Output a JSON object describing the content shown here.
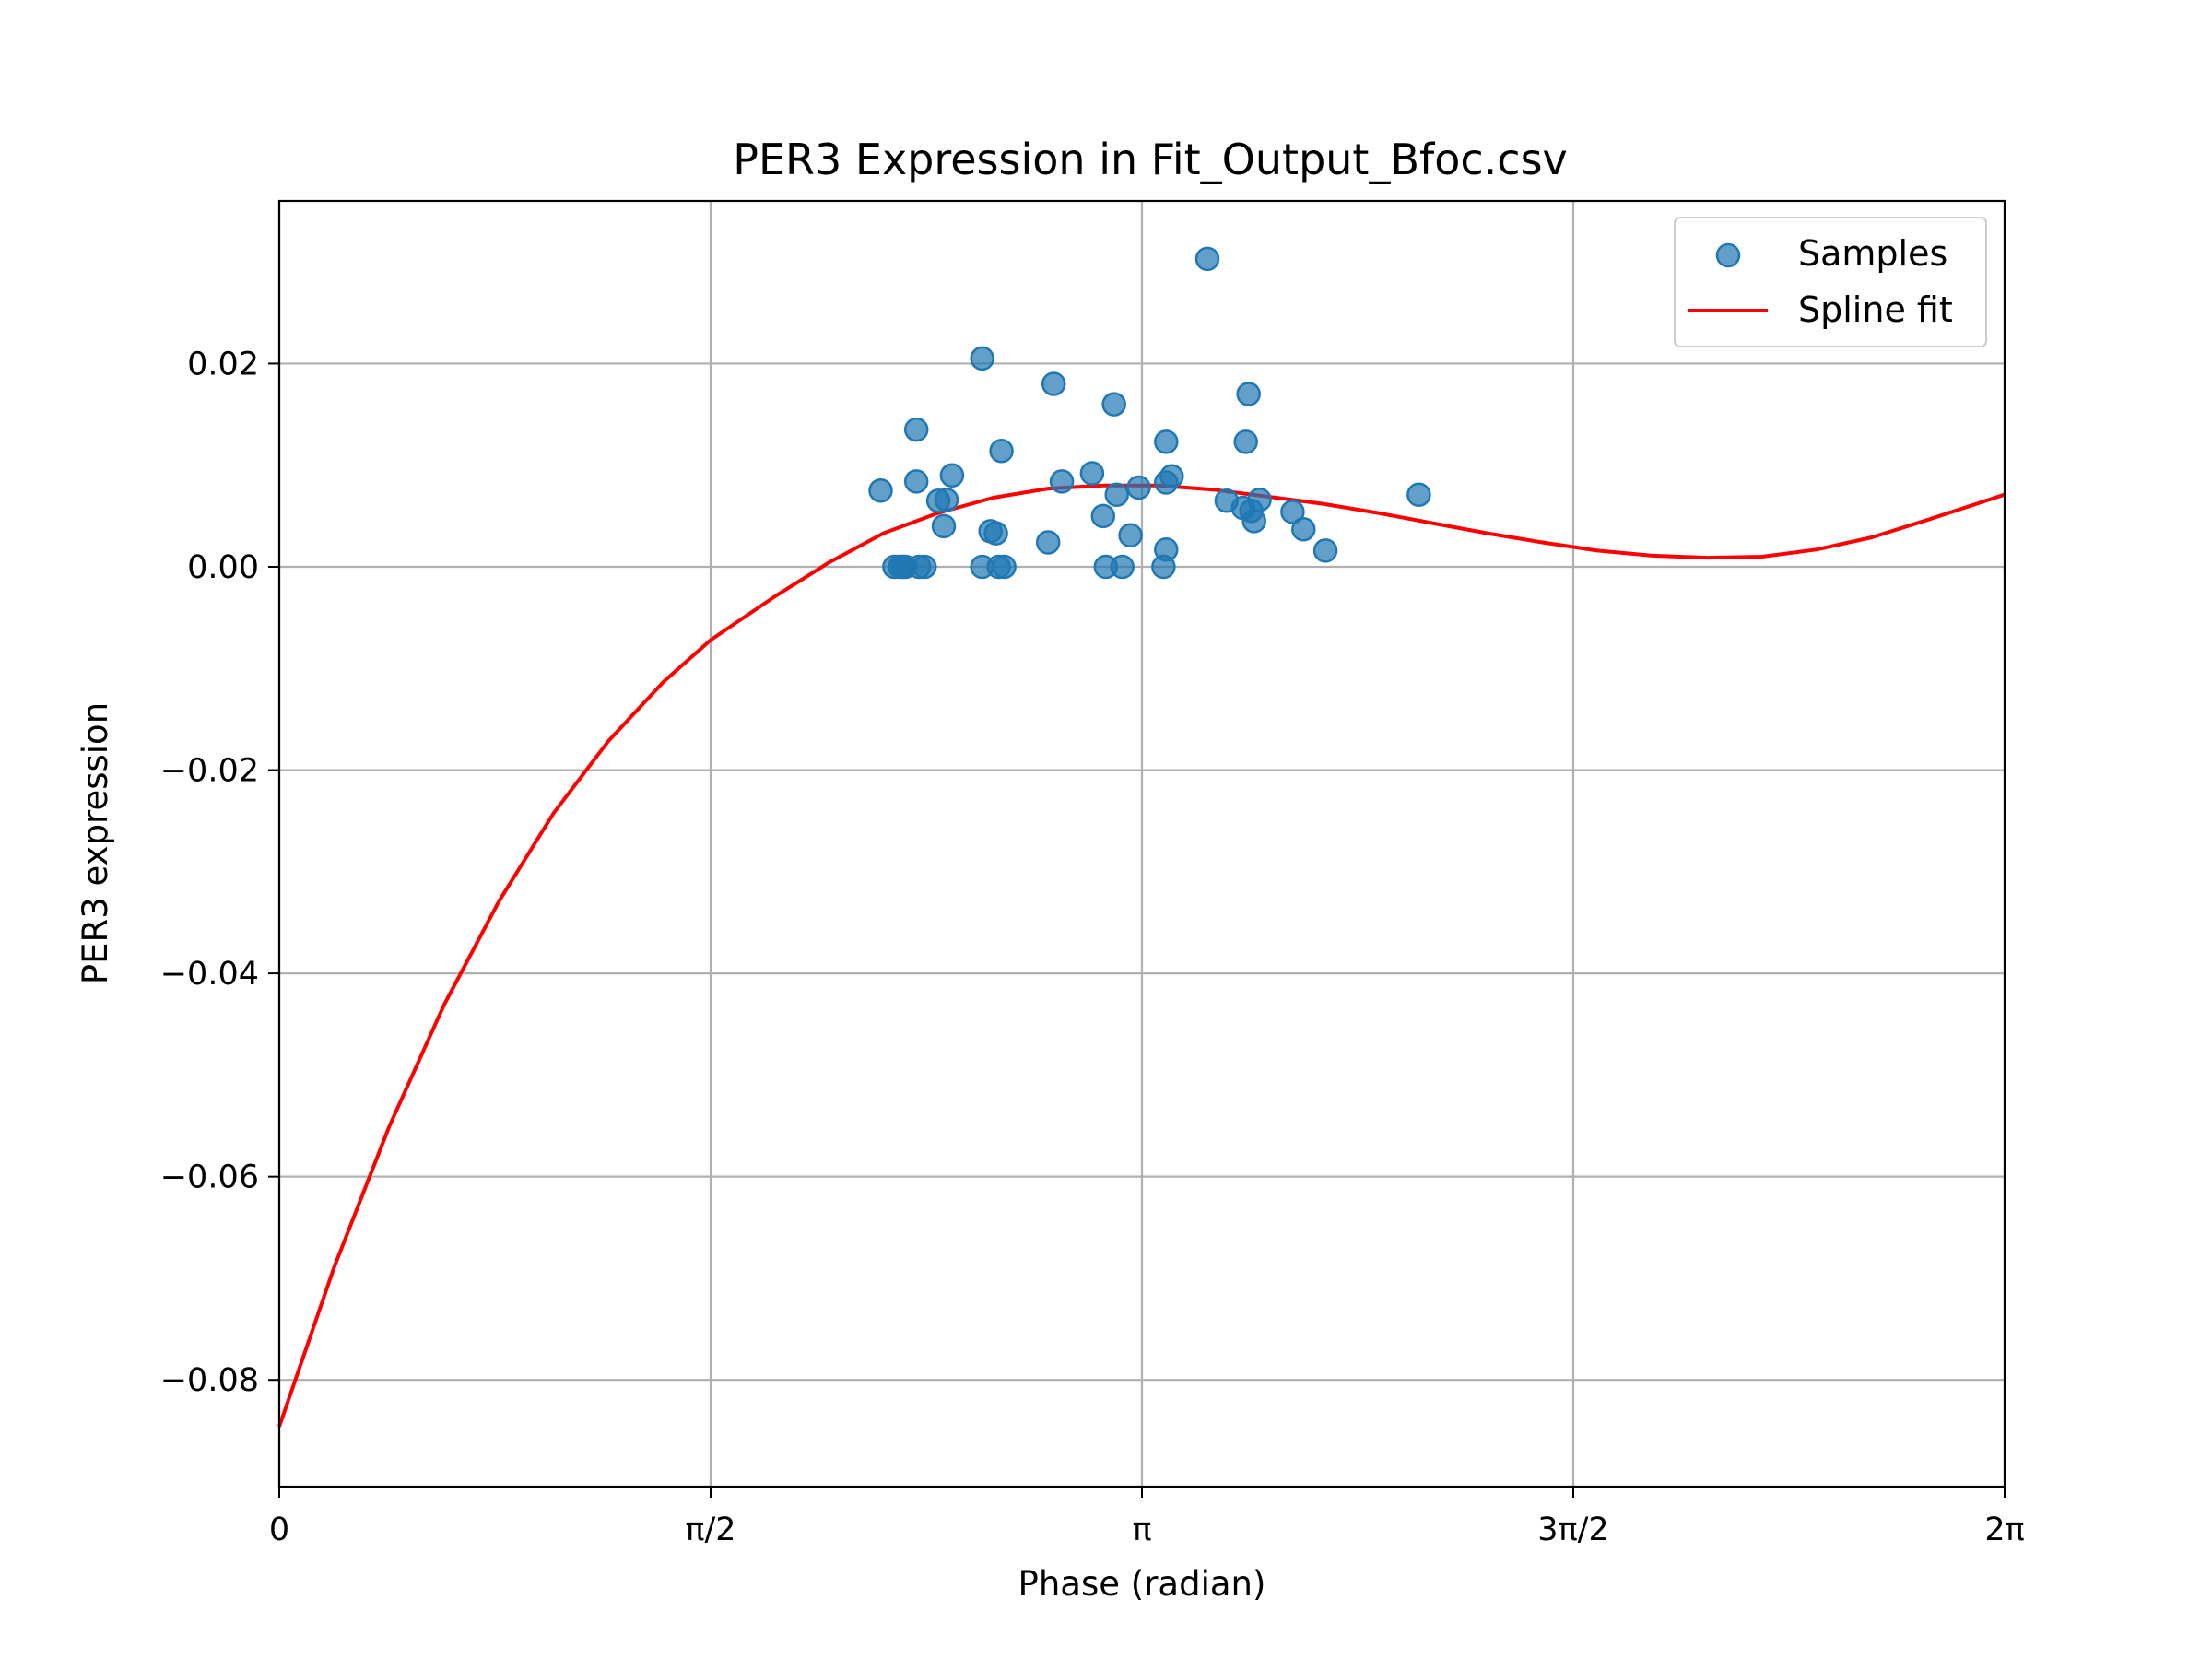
{
  "chart_data": {
    "type": "scatter",
    "title": "PER3 Expression in Fit_Output_Bfoc.csv",
    "xlabel": "Phase (radian)",
    "ylabel": "PER3 expression",
    "xlim": [
      0,
      6.283185
    ],
    "ylim": [
      -0.0905,
      0.036
    ],
    "grid": true,
    "legend_position": "top-right",
    "x_ticks": [
      {
        "value": 0,
        "label": "0"
      },
      {
        "value": 1.570796,
        "label": "π/2"
      },
      {
        "value": 3.141593,
        "label": "π"
      },
      {
        "value": 4.712389,
        "label": "3π/2"
      },
      {
        "value": 6.283185,
        "label": "2π"
      }
    ],
    "y_ticks": [
      {
        "value": 0.02,
        "label": "0.02"
      },
      {
        "value": 0.0,
        "label": "0.00"
      },
      {
        "value": -0.02,
        "label": "−0.02"
      },
      {
        "value": -0.04,
        "label": "−0.04"
      },
      {
        "value": -0.06,
        "label": "−0.06"
      },
      {
        "value": -0.08,
        "label": "−0.08"
      }
    ],
    "series": [
      {
        "name": "Samples",
        "kind": "scatter",
        "color": "#1f77b4",
        "points": [
          [
            2.19,
            0.0075
          ],
          [
            2.24,
            0.0
          ],
          [
            2.26,
            0.0
          ],
          [
            2.27,
            0.0
          ],
          [
            2.28,
            0.0
          ],
          [
            2.32,
            0.0135
          ],
          [
            2.32,
            0.0084
          ],
          [
            2.33,
            0.0
          ],
          [
            2.35,
            0.0
          ],
          [
            2.4,
            0.0065
          ],
          [
            2.43,
            0.0066
          ],
          [
            2.42,
            0.004
          ],
          [
            2.45,
            0.009
          ],
          [
            2.56,
            0.0205
          ],
          [
            2.56,
            0.0
          ],
          [
            2.59,
            0.0035
          ],
          [
            2.61,
            0.0033
          ],
          [
            2.62,
            0.0
          ],
          [
            2.64,
            0.0
          ],
          [
            2.63,
            0.0114
          ],
          [
            2.8,
            0.0024
          ],
          [
            2.82,
            0.018
          ],
          [
            2.85,
            0.0084
          ],
          [
            2.96,
            0.0092
          ],
          [
            3.0,
            0.005
          ],
          [
            3.01,
            0.0
          ],
          [
            3.04,
            0.016
          ],
          [
            3.05,
            0.0071
          ],
          [
            3.07,
            0.0
          ],
          [
            3.1,
            0.0031
          ],
          [
            3.13,
            0.0078
          ],
          [
            3.22,
            0.0
          ],
          [
            3.23,
            0.0017
          ],
          [
            3.23,
            0.0123
          ],
          [
            3.23,
            0.0083
          ],
          [
            3.25,
            0.0089
          ],
          [
            3.38,
            0.0303
          ],
          [
            3.45,
            0.0065
          ],
          [
            3.51,
            0.0058
          ],
          [
            3.52,
            0.0123
          ],
          [
            3.53,
            0.017
          ],
          [
            3.54,
            0.0055
          ],
          [
            3.55,
            0.0045
          ],
          [
            3.57,
            0.0066
          ],
          [
            3.69,
            0.0054
          ],
          [
            3.73,
            0.0037
          ],
          [
            3.81,
            0.0016
          ],
          [
            4.15,
            0.0071
          ]
        ]
      },
      {
        "name": "Spline fit",
        "kind": "line",
        "color": "#ff0000",
        "points": [
          [
            0.0,
            -0.0846
          ],
          [
            0.2,
            -0.0689
          ],
          [
            0.4,
            -0.0551
          ],
          [
            0.6,
            -0.0431
          ],
          [
            0.8,
            -0.0329
          ],
          [
            1.0,
            -0.0242
          ],
          [
            1.2,
            -0.0171
          ],
          [
            1.4,
            -0.0113
          ],
          [
            1.571,
            -0.0072
          ],
          [
            1.8,
            -0.003
          ],
          [
            2.0,
            0.0004
          ],
          [
            2.2,
            0.0033
          ],
          [
            2.4,
            0.0053
          ],
          [
            2.6,
            0.0068
          ],
          [
            2.8,
            0.0077
          ],
          [
            3.0,
            0.008
          ],
          [
            3.2,
            0.008
          ],
          [
            3.4,
            0.0076
          ],
          [
            3.6,
            0.0069
          ],
          [
            3.8,
            0.0062
          ],
          [
            4.0,
            0.0053
          ],
          [
            4.2,
            0.0043
          ],
          [
            4.4,
            0.0033
          ],
          [
            4.6,
            0.0024
          ],
          [
            4.8,
            0.0016
          ],
          [
            5.0,
            0.0011
          ],
          [
            5.2,
            0.0009
          ],
          [
            5.4,
            0.001
          ],
          [
            5.6,
            0.0017
          ],
          [
            5.8,
            0.0029
          ],
          [
            6.0,
            0.0046
          ],
          [
            6.283,
            0.0071
          ]
        ]
      }
    ]
  }
}
